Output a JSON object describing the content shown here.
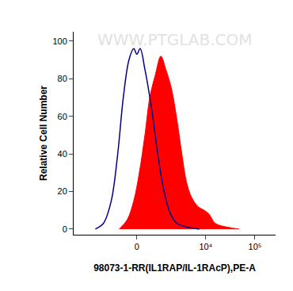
{
  "chart_data": {
    "type": "area",
    "x_label": "98073-1-RR(IL1RAP/IL-1RAcP),PE-A",
    "y_label": "Relative Cell Number",
    "annotations": [
      "WWW.PTGLAB.COM"
    ],
    "xlim": [
      -7700,
      262144
    ],
    "xticks": [
      0,
      {
        "value": 10000,
        "label": "10⁴"
      },
      {
        "value": 100000,
        "label": "10⁵"
      }
    ],
    "ylim": [
      -3,
      105
    ],
    "yticks": [
      0,
      20,
      40,
      60,
      80,
      100
    ],
    "grid": false,
    "series": [
      {
        "type": "line",
        "color": "#00008b",
        "x": [
          -2750,
          -1840,
          -1210,
          -820,
          -545,
          -305,
          -120,
          0,
          120,
          305,
          580,
          905,
          1310,
          1840,
          2540,
          4200,
          7400
        ],
        "values": [
          0,
          3,
          15,
          40,
          70,
          90,
          96,
          93,
          96,
          85,
          65,
          40,
          20,
          8,
          3,
          1,
          0
        ]
      },
      {
        "type": "area",
        "color": "#ff0000",
        "x": [
          -740,
          -375,
          -120,
          90,
          305,
          510,
          775,
          1095,
          1440,
          1920,
          2540,
          3220,
          4030,
          5100,
          6900,
          9300,
          11600,
          15700,
          27500,
          48000
        ],
        "values": [
          0,
          5,
          15,
          30,
          50,
          70,
          82,
          92,
          85,
          75,
          58,
          40,
          25,
          17,
          12,
          10,
          8,
          3,
          1,
          0
        ]
      }
    ]
  }
}
